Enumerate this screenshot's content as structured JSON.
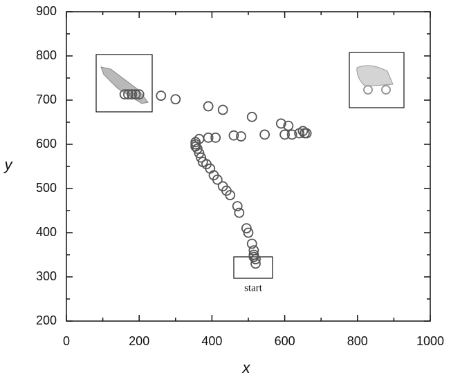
{
  "chart_data": {
    "type": "scatter",
    "x_label": "x",
    "y_label": "y",
    "annotation": "start",
    "xlim": [
      0,
      1000
    ],
    "ylim": [
      200,
      900
    ],
    "xticks": [
      0,
      200,
      400,
      600,
      800,
      1000
    ],
    "yticks": [
      200,
      300,
      400,
      500,
      600,
      700,
      800,
      900
    ],
    "color": "#555555",
    "x": [
      160,
      170,
      180,
      190,
      200,
      260,
      300,
      390,
      430,
      510,
      590,
      610,
      600,
      620,
      640,
      650,
      655,
      660,
      545,
      480,
      460,
      410,
      390,
      365,
      355,
      355,
      355,
      360,
      365,
      370,
      375,
      385,
      395,
      405,
      415,
      430,
      440,
      450,
      470,
      475,
      495,
      500,
      510,
      515,
      515,
      515,
      520,
      520
    ],
    "y": [
      713,
      713,
      713,
      713,
      713,
      710,
      702,
      686,
      678,
      662,
      647,
      642,
      622,
      622,
      625,
      630,
      625,
      625,
      622,
      618,
      620,
      615,
      615,
      612,
      605,
      600,
      595,
      590,
      580,
      570,
      560,
      555,
      545,
      530,
      520,
      505,
      495,
      485,
      460,
      445,
      410,
      400,
      375,
      360,
      350,
      345,
      340,
      330
    ]
  }
}
